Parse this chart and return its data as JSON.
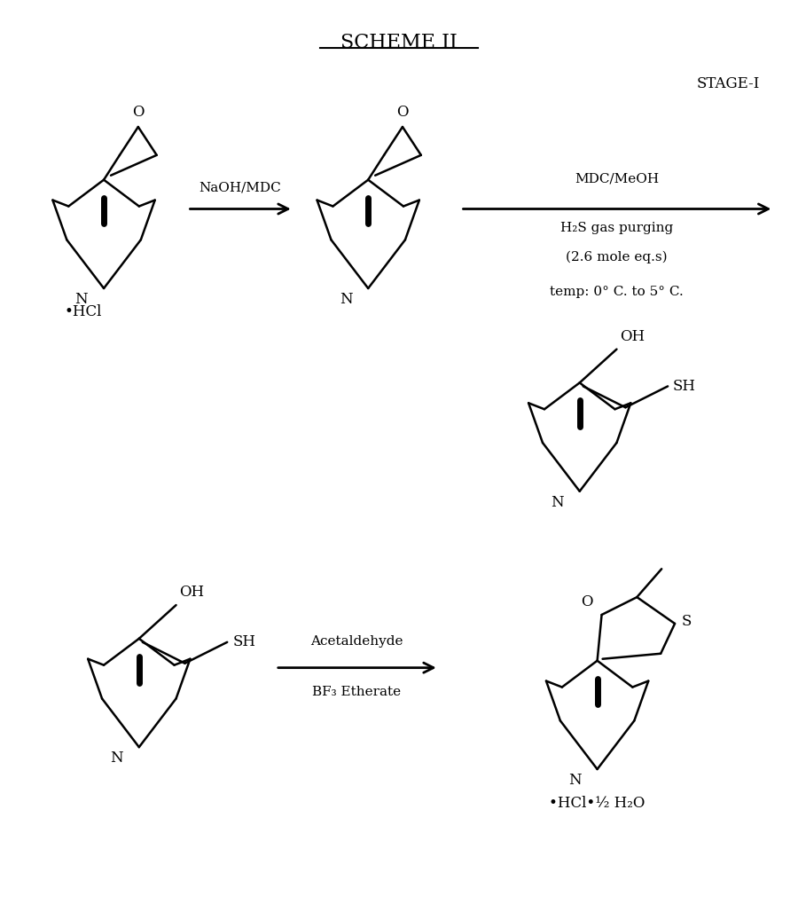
{
  "title": "SCHEME II",
  "stage_label": "STAGE-I",
  "bg_color": "#ffffff",
  "line_color": "#000000",
  "title_fontsize": 16,
  "label_fontsize": 12,
  "small_fontsize": 11,
  "annotations": {
    "arrow1_label": "NaOH/MDC",
    "arrow2_label_top": "MDC/MeOH",
    "arrow2_label_mid": "H₂S gas purging",
    "arrow2_label_bot1": "(2.6 mole eq.s)",
    "arrow2_label_bot2": "temp: 0° C. to 5° C.",
    "mol1_sub": "•HCl",
    "arrow3_label_top": "Acetaldehyde",
    "arrow3_label_bot": "BF₃ Etherate",
    "mol_final_sub": "•HCl•½ H₂O",
    "N_label": "N",
    "O_label": "O",
    "OH_label": "OH",
    "SH_label": "SH",
    "S_label": "S"
  }
}
